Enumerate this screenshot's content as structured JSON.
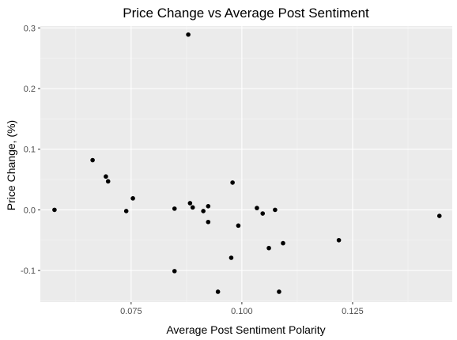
{
  "chart_data": {
    "type": "scatter",
    "title": "Price Change vs Average Post Sentiment",
    "xlabel": "Average Post Sentiment Polarity",
    "ylabel": "Price Change, (%)",
    "xlim": [
      0.0545,
      0.1475
    ],
    "ylim": [
      -0.152,
      0.303
    ],
    "x_ticks": [
      0.075,
      0.1,
      0.125
    ],
    "x_tick_labels": [
      "0.075",
      "0.100",
      "0.125"
    ],
    "y_ticks": [
      -0.1,
      0.0,
      0.1,
      0.2,
      0.3
    ],
    "y_tick_labels": [
      "-0.1",
      "0.0",
      "0.1",
      "0.2",
      "0.3"
    ],
    "grid": true,
    "colors": {
      "panel_background": "#ebebeb",
      "grid_major": "#ffffff",
      "grid_minor": "#f5f5f5",
      "points": "#000000"
    },
    "points": [
      {
        "x": 0.0577,
        "y": 0.0
      },
      {
        "x": 0.0663,
        "y": 0.082
      },
      {
        "x": 0.0693,
        "y": 0.055
      },
      {
        "x": 0.0698,
        "y": 0.047
      },
      {
        "x": 0.0739,
        "y": -0.002
      },
      {
        "x": 0.0754,
        "y": 0.019
      },
      {
        "x": 0.0848,
        "y": 0.002
      },
      {
        "x": 0.0848,
        "y": -0.101
      },
      {
        "x": 0.0879,
        "y": 0.289
      },
      {
        "x": 0.0883,
        "y": 0.011
      },
      {
        "x": 0.0889,
        "y": 0.004
      },
      {
        "x": 0.0913,
        "y": -0.002
      },
      {
        "x": 0.0924,
        "y": 0.006
      },
      {
        "x": 0.0924,
        "y": -0.02
      },
      {
        "x": 0.0946,
        "y": -0.135
      },
      {
        "x": 0.0976,
        "y": -0.079
      },
      {
        "x": 0.0979,
        "y": 0.045
      },
      {
        "x": 0.0992,
        "y": -0.026
      },
      {
        "x": 0.1034,
        "y": 0.003
      },
      {
        "x": 0.1047,
        "y": -0.006
      },
      {
        "x": 0.1061,
        "y": -0.063
      },
      {
        "x": 0.1075,
        "y": 0.0
      },
      {
        "x": 0.1084,
        "y": -0.135
      },
      {
        "x": 0.1093,
        "y": -0.055
      },
      {
        "x": 0.1219,
        "y": -0.05
      },
      {
        "x": 0.1446,
        "y": -0.01
      }
    ]
  }
}
